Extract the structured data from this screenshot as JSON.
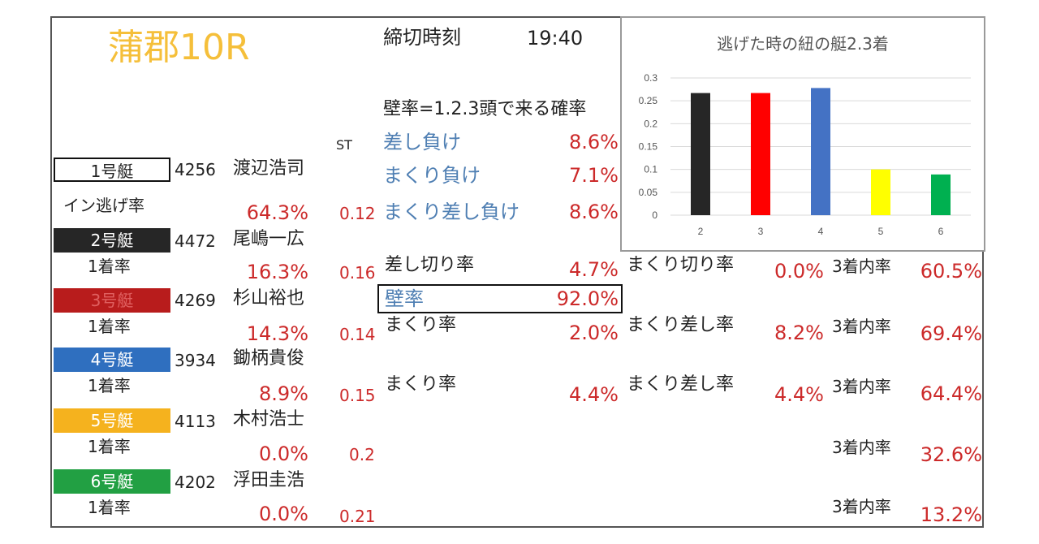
{
  "race": {
    "title": "蒲郡10R",
    "deadline_label": "締切時刻",
    "deadline_time": "19:40"
  },
  "wall_header": "壁率=1.2.3頭で来る確率",
  "st_label": "ST",
  "loss_rates": [
    {
      "label": "差し負け",
      "value": "8.6%"
    },
    {
      "label": "まくり負け",
      "value": "7.1%"
    },
    {
      "label": "まくり差し負け",
      "value": "8.6%"
    }
  ],
  "boats": [
    {
      "label": "1号艇",
      "number": "4256",
      "name": "渡辺浩司",
      "rate_label": "イン逃げ率",
      "rate": "64.3%",
      "st": "0.12",
      "bg": "#ffffff",
      "fg": "#222222"
    },
    {
      "label": "2号艇",
      "number": "4472",
      "name": "尾嶋一広",
      "rate_label": "1着率",
      "rate": "16.3%",
      "st": "0.16",
      "bg": "#262626",
      "fg": "#ffffff"
    },
    {
      "label": "3号艇",
      "number": "4269",
      "name": "杉山裕也",
      "rate_label": "1着率",
      "rate": "14.3%",
      "st": "0.14",
      "bg": "#b81c1c",
      "fg": "#e06060"
    },
    {
      "label": "4号艇",
      "number": "3934",
      "name": "鋤柄貴俊",
      "rate_label": "1着率",
      "rate": "8.9%",
      "st": "0.15",
      "bg": "#2f6fbf",
      "fg": "#ffffff"
    },
    {
      "label": "5号艇",
      "number": "4113",
      "name": "木村浩士",
      "rate_label": "1着率",
      "rate": "0.0%",
      "st": "0.2",
      "bg": "#f5b21e",
      "fg": "#ffffff"
    },
    {
      "label": "6号艇",
      "number": "4202",
      "name": "浮田圭浩",
      "rate_label": "1着率",
      "rate": "0.0%",
      "st": "0.21",
      "bg": "#22a043",
      "fg": "#ffffff"
    }
  ],
  "stats": {
    "sashikiri": {
      "label": "差し切り率",
      "value": "4.7%"
    },
    "makurikiri": {
      "label": "まくり切り率",
      "value": "0.0%"
    },
    "wall": {
      "label": "壁率",
      "value": "92.0%"
    },
    "boat3": {
      "makuri": {
        "label": "まくり率",
        "value": "2.0%"
      },
      "makurisashi": {
        "label": "まくり差し率",
        "value": "8.2%"
      }
    },
    "boat4": {
      "makuri": {
        "label": "まくり率",
        "value": "4.4%"
      },
      "makurisashi": {
        "label": "まくり差し率",
        "value": "4.4%"
      }
    }
  },
  "top3": [
    {
      "label": "3着内率",
      "value": "60.5%"
    },
    {
      "label": "3着内率",
      "value": "69.4%"
    },
    {
      "label": "3着内率",
      "value": "64.4%"
    },
    {
      "label": "3着内率",
      "value": "32.6%"
    },
    {
      "label": "3着内率",
      "value": "13.2%"
    }
  ],
  "chart_data": {
    "type": "bar",
    "title": "逃げた時の紐の艇2.3着",
    "categories": [
      "2",
      "3",
      "4",
      "5",
      "6"
    ],
    "values": [
      0.267,
      0.267,
      0.278,
      0.1,
      0.089
    ],
    "colors": [
      "#262626",
      "#ff0000",
      "#4472c4",
      "#ffff00",
      "#00b050"
    ],
    "ylim": [
      0,
      0.3
    ],
    "yticks": [
      "0",
      "0.05",
      "0.1",
      "0.15",
      "0.2",
      "0.25",
      "0.3"
    ],
    "grid": true,
    "xlabel": "",
    "ylabel": ""
  }
}
